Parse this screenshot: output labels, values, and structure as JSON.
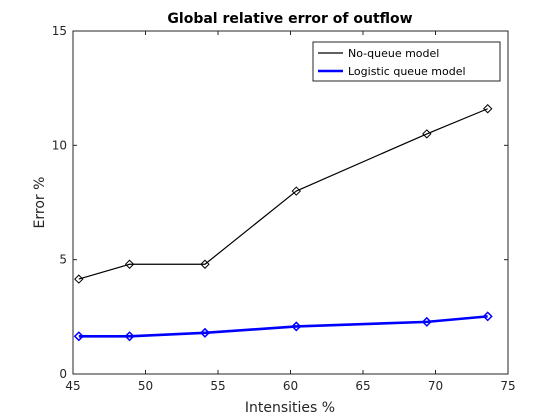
{
  "chart_data": {
    "type": "line",
    "title": "Global relative error of outflow",
    "xlabel": "Intensities %",
    "ylabel": "Error %",
    "xlim": [
      45,
      75
    ],
    "ylim": [
      0,
      15
    ],
    "xticks": [
      45,
      50,
      55,
      60,
      65,
      70,
      75
    ],
    "yticks": [
      0,
      5,
      10,
      15
    ],
    "grid": false,
    "legend_position": "top-right",
    "series": [
      {
        "name": "No-queue model",
        "color": "#000000",
        "marker": "diamond",
        "x": [
          45.4,
          48.9,
          54.1,
          60.4,
          69.4,
          73.6
        ],
        "y": [
          4.15,
          4.8,
          4.8,
          8.0,
          10.5,
          11.6
        ]
      },
      {
        "name": "Logistic queue model",
        "color": "#0000ff",
        "marker": "diamond",
        "x": [
          45.4,
          48.9,
          54.1,
          60.4,
          69.4,
          73.6
        ],
        "y": [
          1.65,
          1.65,
          1.8,
          2.08,
          2.28,
          2.52
        ]
      }
    ]
  }
}
